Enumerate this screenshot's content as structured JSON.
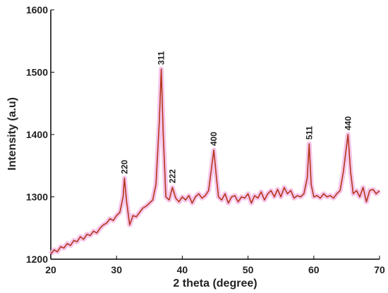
{
  "chart_data": {
    "type": "line",
    "xlabel": "2 theta (degree)",
    "ylabel": "Intensity (a.u)",
    "xlim": [
      20,
      70
    ],
    "xticks": [
      20,
      30,
      40,
      50,
      60,
      70
    ],
    "ylim": [
      1200,
      1600
    ],
    "yticks": [
      1200,
      1300,
      1400,
      1500,
      1600
    ],
    "series": [
      {
        "color": "#b5361c",
        "x": [
          20,
          20.5,
          21,
          21.5,
          22,
          22.5,
          23,
          23.5,
          24,
          24.5,
          25,
          25.5,
          26,
          26.5,
          27,
          27.5,
          28,
          28.5,
          29,
          29.5,
          30,
          30.5,
          31,
          31.2,
          31.5,
          32,
          32.5,
          33,
          33.5,
          34,
          34.5,
          35,
          35.5,
          36,
          36.5,
          36.8,
          37.1,
          37.5,
          38,
          38.5,
          39,
          39.5,
          40,
          40.5,
          41,
          41.5,
          42,
          42.5,
          43,
          43.5,
          44,
          44.5,
          44.8,
          45.2,
          45.5,
          46,
          46.5,
          47,
          47.5,
          48,
          48.5,
          49,
          49.5,
          50,
          50.5,
          51,
          51.5,
          52,
          52.5,
          53,
          53.5,
          54,
          54.5,
          55,
          55.5,
          56,
          56.5,
          57,
          57.5,
          58,
          58.5,
          59,
          59.3,
          59.6,
          60,
          60.5,
          61,
          61.5,
          62,
          62.5,
          63,
          63.5,
          64,
          64.5,
          65.2,
          65.6,
          66,
          66.5,
          67,
          67.5,
          68,
          68.5,
          69,
          69.5,
          70
        ],
        "values": [
          1208,
          1215,
          1212,
          1220,
          1218,
          1225,
          1222,
          1230,
          1228,
          1236,
          1232,
          1240,
          1238,
          1245,
          1242,
          1250,
          1255,
          1258,
          1265,
          1262,
          1270,
          1275,
          1300,
          1330,
          1295,
          1255,
          1270,
          1268,
          1275,
          1282,
          1285,
          1290,
          1295,
          1320,
          1420,
          1505,
          1400,
          1300,
          1295,
          1315,
          1298,
          1292,
          1300,
          1295,
          1302,
          1290,
          1300,
          1305,
          1298,
          1302,
          1310,
          1350,
          1375,
          1330,
          1300,
          1295,
          1305,
          1290,
          1300,
          1302,
          1292,
          1300,
          1298,
          1305,
          1290,
          1302,
          1298,
          1308,
          1295,
          1305,
          1310,
          1300,
          1312,
          1300,
          1315,
          1305,
          1310,
          1298,
          1302,
          1300,
          1305,
          1330,
          1385,
          1320,
          1300,
          1302,
          1298,
          1305,
          1300,
          1302,
          1298,
          1305,
          1310,
          1340,
          1400,
          1340,
          1305,
          1310,
          1300,
          1315,
          1292,
          1310,
          1312,
          1305,
          1310
        ]
      }
    ],
    "annotations": [
      {
        "text": "220",
        "x": 31.2,
        "y": 1330
      },
      {
        "text": "311",
        "x": 36.8,
        "y": 1505
      },
      {
        "text": "222",
        "x": 38.5,
        "y": 1315
      },
      {
        "text": "400",
        "x": 44.8,
        "y": 1375
      },
      {
        "text": "511",
        "x": 59.3,
        "y": 1385
      },
      {
        "text": "440",
        "x": 65.2,
        "y": 1400
      }
    ]
  }
}
